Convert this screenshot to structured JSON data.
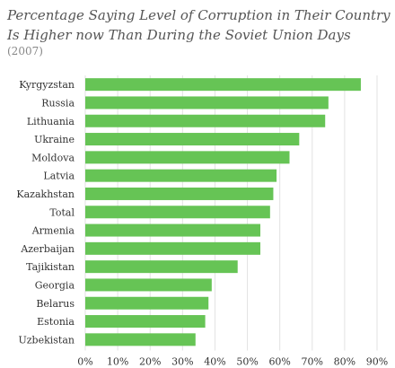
{
  "chart_data": {
    "type": "bar",
    "orientation": "horizontal",
    "title": "Percentage Saying Level of Corruption in Their Country Is Higher now Than During the Soviet Union Days",
    "subtitle": "(2007)",
    "categories": [
      "Kyrgyzstan",
      "Russia",
      "Lithuania",
      "Ukraine",
      "Moldova",
      "Latvia",
      "Kazakhstan",
      "Total",
      "Armenia",
      "Azerbaijan",
      "Tajikistan",
      "Georgia",
      "Belarus",
      "Estonia",
      "Uzbekistan"
    ],
    "values": [
      85,
      75,
      74,
      66,
      63,
      59,
      58,
      57,
      54,
      54,
      47,
      39,
      38,
      37,
      34
    ],
    "xlim": [
      0,
      90
    ],
    "x_ticks": [
      "0%",
      "10%",
      "20%",
      "30%",
      "40%",
      "50%",
      "60%",
      "70%",
      "80%",
      "90%"
    ],
    "grid": true,
    "bar_color": "#66c455",
    "grid_color": "#e2e2e2"
  }
}
